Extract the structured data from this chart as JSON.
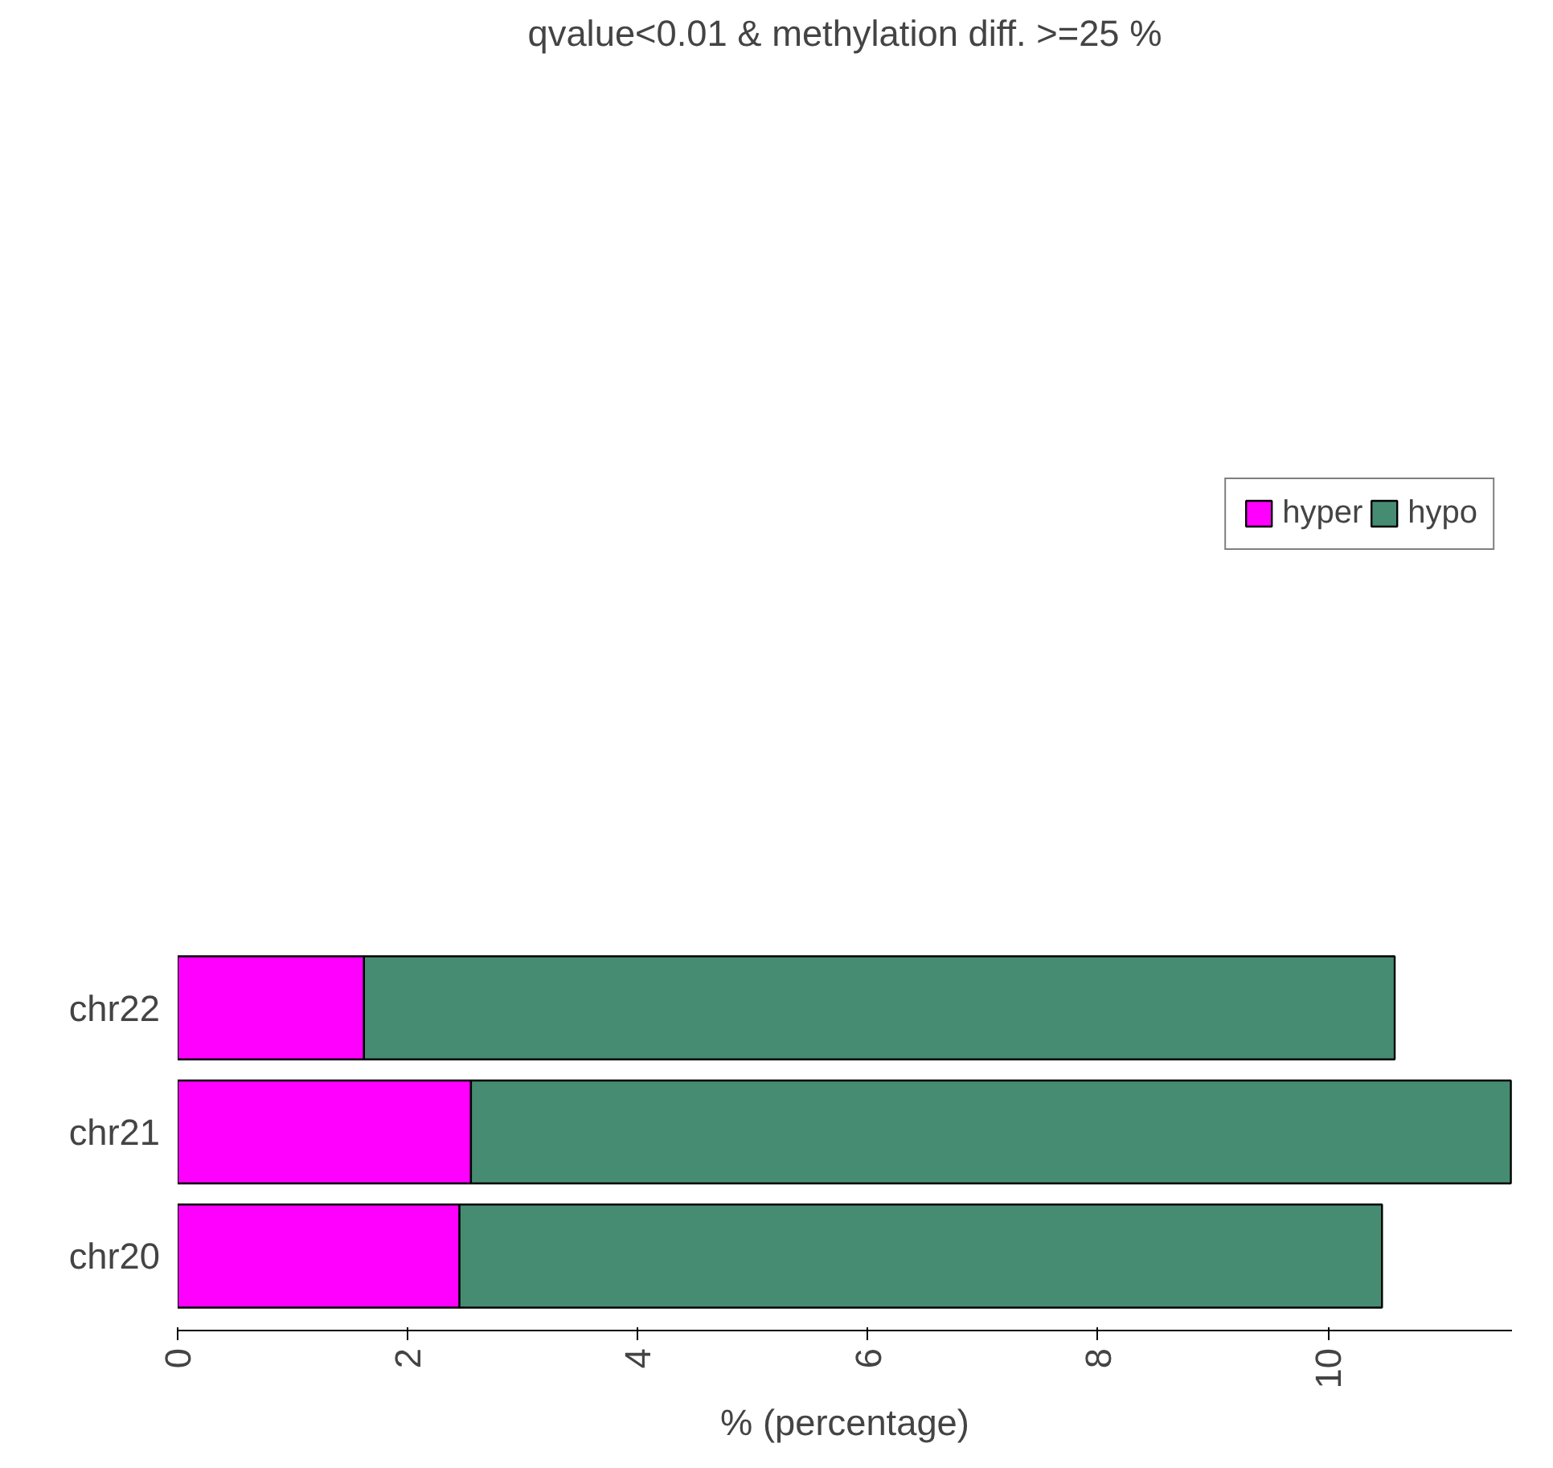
{
  "chart_data": {
    "type": "bar",
    "orientation": "horizontal",
    "stacked": true,
    "title": "qvalue<0.01 & methylation diff. >=25 %",
    "xlabel": "% (percentage)",
    "categories": [
      "chr22",
      "chr21",
      "chr20"
    ],
    "series": [
      {
        "name": "hyper",
        "color": "#ff00ff",
        "values": [
          1.62,
          2.55,
          2.45
        ]
      },
      {
        "name": "hypo",
        "color": "#468c73",
        "values": [
          8.96,
          9.04,
          8.02
        ]
      }
    ],
    "xlim": [
      0,
      11.6
    ],
    "xticks": [
      0,
      2,
      4,
      6,
      8,
      10
    ],
    "grid": false,
    "legend": "top right"
  }
}
